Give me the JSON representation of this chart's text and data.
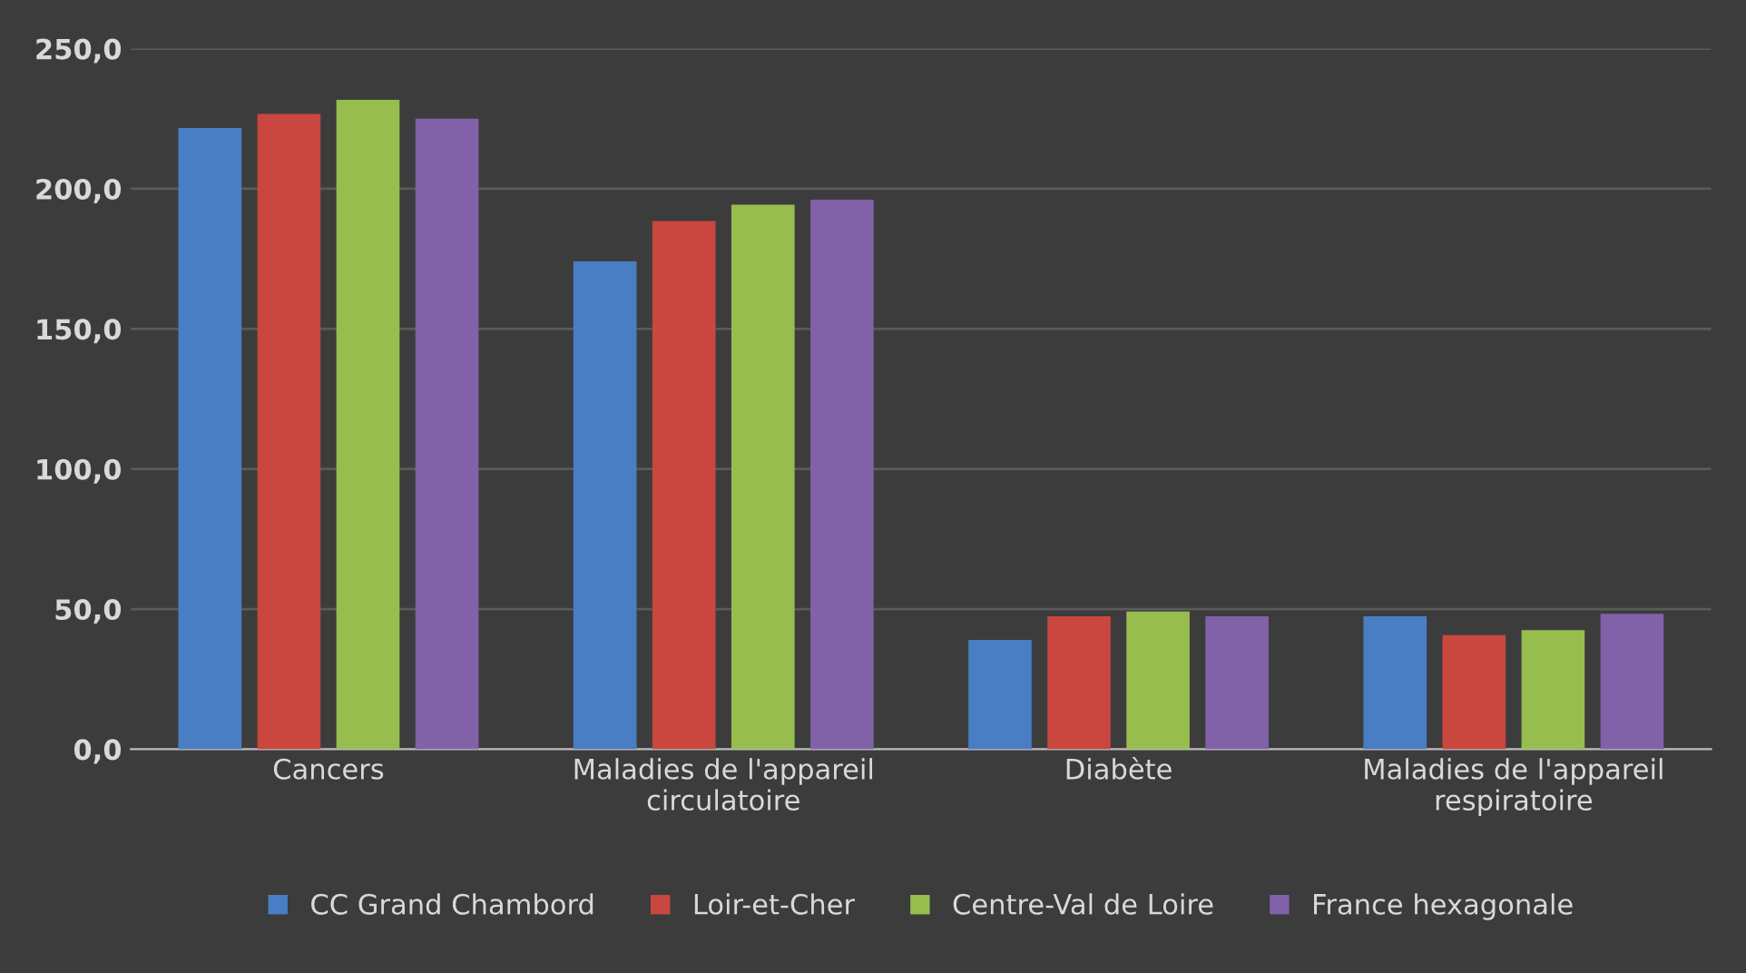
{
  "chart_data": {
    "type": "bar",
    "categories": [
      "Cancers",
      "Maladies de l'appareil\ncirculatoire",
      "Diabète",
      "Maladies de l'appareil\nrespiratoire"
    ],
    "series": [
      {
        "name": "CC Grand Chambord",
        "color": "#4a7ec4",
        "values": [
          221.7,
          174.1,
          39.0,
          47.4
        ]
      },
      {
        "name": "Loir-et-Cher",
        "color": "#c9473f",
        "values": [
          226.7,
          188.5,
          47.4,
          40.7
        ]
      },
      {
        "name": "Centre-Val de Loire",
        "color": "#97bd4f",
        "values": [
          231.7,
          194.3,
          49.1,
          42.5
        ]
      },
      {
        "name": "France hexagonale",
        "color": "#8161a8",
        "values": [
          225.0,
          196.1,
          47.4,
          48.3
        ]
      }
    ],
    "ylim": [
      0,
      250
    ],
    "yticks": [
      {
        "value": 0,
        "label": "0,0"
      },
      {
        "value": 50,
        "label": "50,0"
      },
      {
        "value": 100,
        "label": "100,0"
      },
      {
        "value": 150,
        "label": "150,0"
      },
      {
        "value": 200,
        "label": "200,0"
      },
      {
        "value": 250,
        "label": "250,0"
      }
    ],
    "grid": "y",
    "legend": "bottom"
  }
}
